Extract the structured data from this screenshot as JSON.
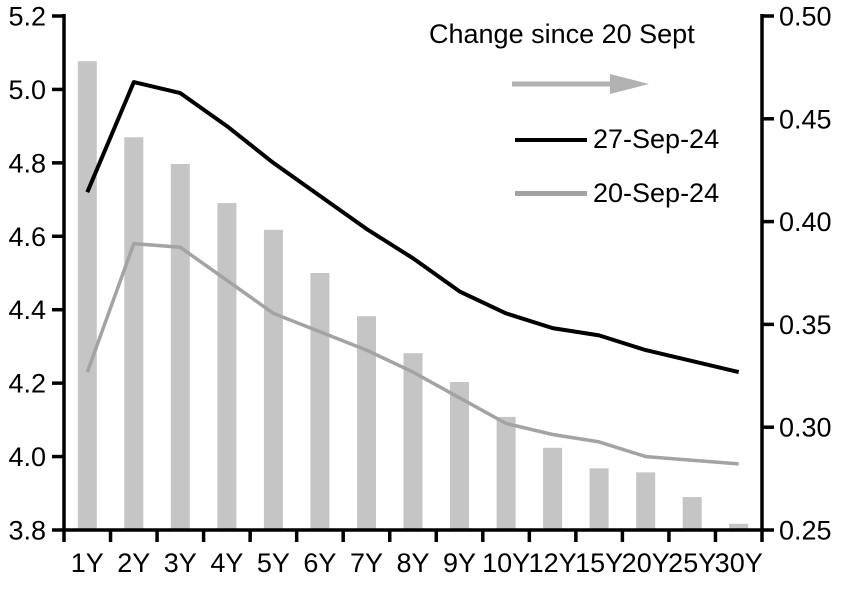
{
  "chart_data": {
    "type": "combo",
    "title": "",
    "categories": [
      "1Y",
      "2Y",
      "3Y",
      "4Y",
      "5Y",
      "6Y",
      "7Y",
      "8Y",
      "9Y",
      "10Y",
      "12Y",
      "15Y",
      "20Y",
      "25Y",
      "30Y"
    ],
    "series": [
      {
        "name": "Change since 20 Sept",
        "type": "bar",
        "axis": "right",
        "color": "#c5c5c5",
        "values": [
          0.478,
          0.441,
          0.428,
          0.409,
          0.396,
          0.375,
          0.354,
          0.336,
          0.322,
          0.305,
          0.29,
          0.28,
          0.278,
          0.266,
          0.253
        ]
      },
      {
        "name": "27-Sep-24",
        "type": "line",
        "axis": "left",
        "color": "#000000",
        "values": [
          4.72,
          5.02,
          4.99,
          4.9,
          4.8,
          4.71,
          4.62,
          4.54,
          4.45,
          4.39,
          4.35,
          4.33,
          4.29,
          4.26,
          4.23
        ]
      },
      {
        "name": "20-Sep-24",
        "type": "line",
        "axis": "left",
        "color": "#a3a3a3",
        "values": [
          4.23,
          4.58,
          4.57,
          4.48,
          4.39,
          4.34,
          4.29,
          4.23,
          4.16,
          4.09,
          4.06,
          4.04,
          4.0,
          3.99,
          3.98
        ]
      }
    ],
    "axes": {
      "left": {
        "min": 3.8,
        "max": 5.2,
        "step": 0.2,
        "decimals": 1,
        "tick_labels": [
          "5.2",
          "5.0",
          "4.8",
          "4.6",
          "4.4",
          "4.2",
          "4.0",
          "3.8"
        ]
      },
      "right": {
        "min": 0.25,
        "max": 0.5,
        "step": 0.05,
        "decimals": 2,
        "tick_labels": [
          "0.50",
          "0.45",
          "0.40",
          "0.35",
          "0.30",
          "0.25"
        ]
      }
    },
    "grid": false,
    "legend": {
      "position": "top-inside",
      "title": "Change since 20 Sept",
      "arrow_color": "#b2b2b2",
      "items": [
        {
          "label": "27-Sep-24",
          "color": "#000000"
        },
        {
          "label": "20-Sep-24",
          "color": "#a3a3a3"
        }
      ]
    }
  }
}
